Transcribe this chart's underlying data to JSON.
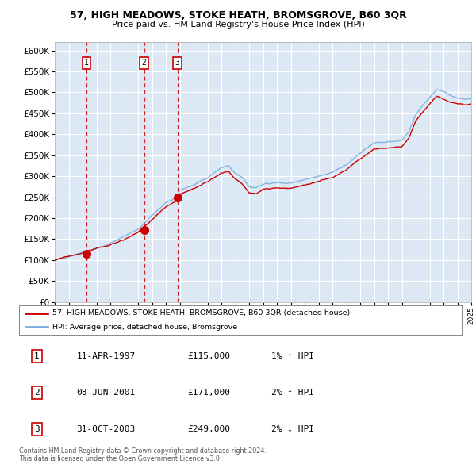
{
  "title": "57, HIGH MEADOWS, STOKE HEATH, BROMSGROVE, B60 3QR",
  "subtitle": "Price paid vs. HM Land Registry's House Price Index (HPI)",
  "background_color": "#dce9f5",
  "grid_color": "#ffffff",
  "ylim": [
    0,
    620000
  ],
  "yticks": [
    0,
    50000,
    100000,
    150000,
    200000,
    250000,
    300000,
    350000,
    400000,
    450000,
    500000,
    550000,
    600000
  ],
  "x_start_year": 1995,
  "x_end_year": 2025,
  "sale_year_nums": [
    1997.28,
    2001.44,
    2003.83
  ],
  "sale_prices": [
    115000,
    171000,
    249000
  ],
  "sale_labels": [
    "1",
    "2",
    "3"
  ],
  "sale_dot_color": "#cc0000",
  "hpi_line_color": "#7aaedc",
  "price_line_color": "#cc0000",
  "dashed_line_color": "#cc0000",
  "legend_entries": [
    "57, HIGH MEADOWS, STOKE HEATH, BROMSGROVE, B60 3QR (detached house)",
    "HPI: Average price, detached house, Bromsgrove"
  ],
  "table_rows": [
    {
      "label": "1",
      "date": "11-APR-1997",
      "price": "£115,000",
      "hpi": "1% ↑ HPI"
    },
    {
      "label": "2",
      "date": "08-JUN-2001",
      "price": "£171,000",
      "hpi": "2% ↑ HPI"
    },
    {
      "label": "3",
      "date": "31-OCT-2003",
      "price": "£249,000",
      "hpi": "2% ↓ HPI"
    }
  ],
  "footer": "Contains HM Land Registry data © Crown copyright and database right 2024.\nThis data is licensed under the Open Government Licence v3.0.",
  "key_years": [
    1995,
    1996,
    1997,
    1998,
    1999,
    2000,
    2001,
    2002,
    2003,
    2003.83,
    2004,
    2005,
    2006,
    2007,
    2007.5,
    2008,
    2008.5,
    2009,
    2009.5,
    2010,
    2011,
    2012,
    2013,
    2014,
    2015,
    2016,
    2017,
    2018,
    2019,
    2020,
    2020.5,
    2021,
    2021.5,
    2022,
    2022.5,
    2023,
    2023.5,
    2024,
    2024.5,
    2025
  ],
  "key_hpi": [
    100000,
    108000,
    117000,
    128000,
    140000,
    155000,
    171000,
    205000,
    235000,
    249000,
    265000,
    278000,
    295000,
    318000,
    322000,
    305000,
    295000,
    272000,
    270000,
    278000,
    283000,
    282000,
    290000,
    300000,
    310000,
    328000,
    355000,
    380000,
    385000,
    388000,
    408000,
    448000,
    470000,
    490000,
    510000,
    505000,
    495000,
    490000,
    488000,
    490000
  ],
  "key_price": [
    100000,
    108000,
    115000,
    126000,
    138000,
    152000,
    171000,
    202000,
    232000,
    249000,
    263000,
    276000,
    293000,
    315000,
    319000,
    300000,
    290000,
    268000,
    265000,
    275000,
    280000,
    278000,
    287000,
    297000,
    307000,
    326000,
    352000,
    377000,
    381000,
    384000,
    404000,
    444000,
    465000,
    486000,
    505000,
    498000,
    490000,
    486000,
    483000,
    485000
  ]
}
